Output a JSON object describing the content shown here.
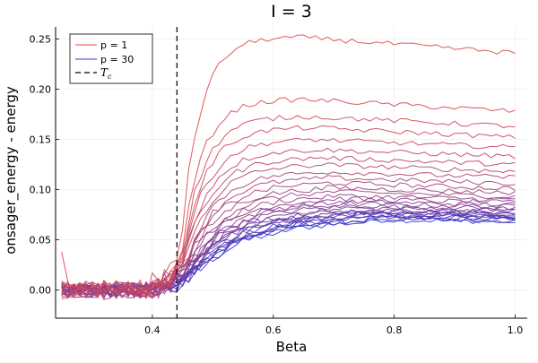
{
  "chart_data": {
    "type": "line",
    "title": "I = 3",
    "xlabel": "Beta",
    "ylabel": "onsager_energy - energy",
    "xlim": [
      0.24,
      1.02
    ],
    "ylim": [
      -0.028,
      0.262
    ],
    "x_ticks": [
      0.4,
      0.6,
      0.8,
      1.0
    ],
    "x_tick_labels": [
      "0.4",
      "0.6",
      "0.8",
      "1.0"
    ],
    "y_ticks": [
      0.0,
      0.05,
      0.1,
      0.15,
      0.2,
      0.25
    ],
    "y_tick_labels": [
      "0.00",
      "0.05",
      "0.10",
      "0.15",
      "0.20",
      "0.25"
    ],
    "grid": true,
    "legend_position": "top-left",
    "legend": [
      {
        "label": "p = 1",
        "style": "solid",
        "color": "#e0474c"
      },
      {
        "label": "p = 30",
        "style": "solid",
        "color": "#3333cc"
      },
      {
        "label": "T",
        "subscript": "c",
        "style": "dashed",
        "color": "#000000"
      }
    ],
    "critical_beta": 0.4407,
    "color_gradient": {
      "start": "#e0474c",
      "end": "#3333cc"
    },
    "series_count": 30,
    "series_plateaus": [
      0.252,
      0.19,
      0.173,
      0.162,
      0.15,
      0.14,
      0.132,
      0.125,
      0.118,
      0.112,
      0.107,
      0.102,
      0.098,
      0.094,
      0.091,
      0.088,
      0.086,
      0.084,
      0.082,
      0.08,
      0.079,
      0.078,
      0.077,
      0.076,
      0.075,
      0.074,
      0.073,
      0.072,
      0.071,
      0.07
    ],
    "series_end_values": [
      0.236,
      0.178,
      0.163,
      0.152,
      0.142,
      0.133,
      0.125,
      0.118,
      0.112,
      0.106,
      0.101,
      0.097,
      0.093,
      0.09,
      0.087,
      0.085,
      0.083,
      0.081,
      0.079,
      0.078,
      0.077,
      0.076,
      0.075,
      0.074,
      0.073,
      0.072,
      0.071,
      0.07,
      0.069,
      0.068
    ],
    "series_example_p1": {
      "name": "p = 1",
      "x": [
        0.25,
        0.3,
        0.35,
        0.4,
        0.44,
        0.46,
        0.48,
        0.5,
        0.55,
        0.6,
        0.65,
        0.7,
        0.75,
        0.8,
        0.85,
        0.9,
        0.95,
        1.0
      ],
      "y": [
        0.038,
        0.0,
        0.0,
        0.01,
        0.03,
        0.13,
        0.175,
        0.2,
        0.235,
        0.25,
        0.252,
        0.251,
        0.252,
        0.25,
        0.248,
        0.245,
        0.24,
        0.236
      ]
    }
  }
}
